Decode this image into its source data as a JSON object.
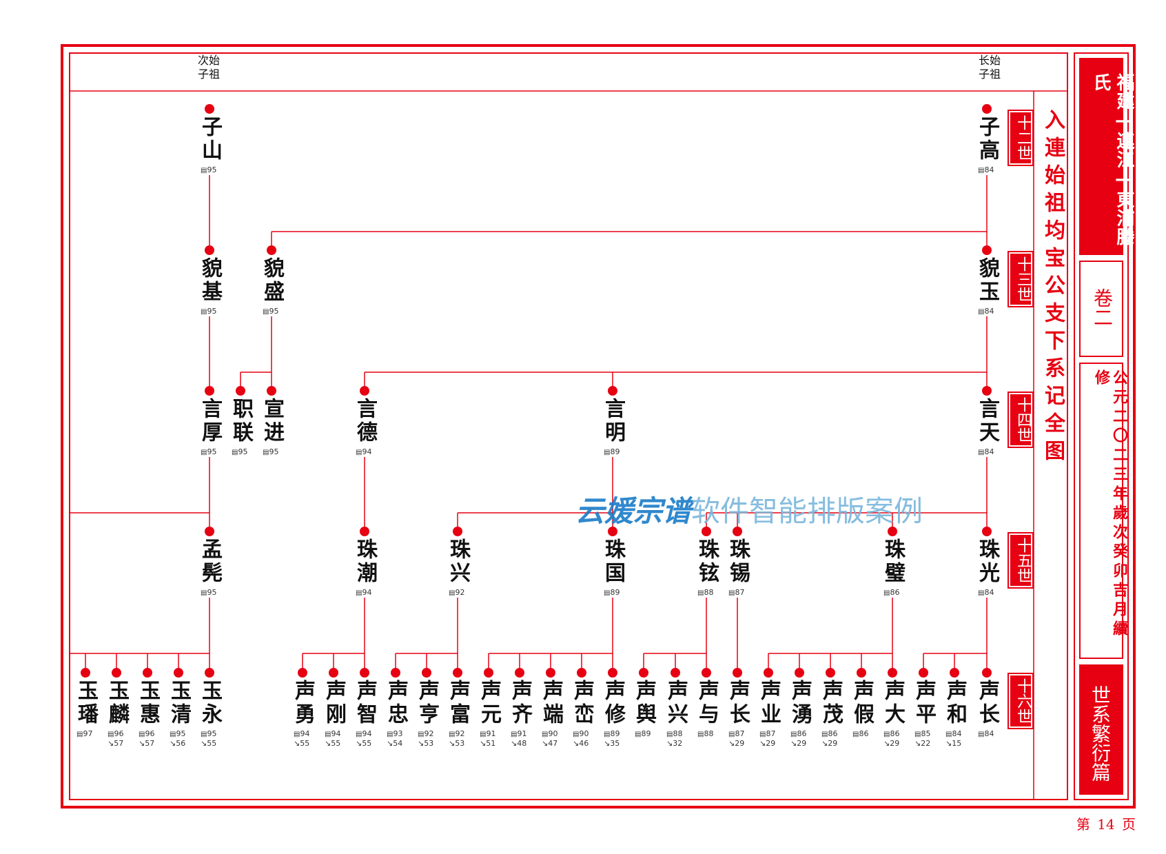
{
  "title_vertical": "入連始祖均宝公支下系记全图",
  "top_labels": {
    "left": [
      "次始",
      "子祖"
    ],
    "right": [
      "长始",
      "子祖"
    ]
  },
  "side_panel": {
    "header": "福建—連江—東浦滕氏",
    "volume": "卷二",
    "date": "公元二〇二三年歲次癸卯吉月續修",
    "section": "世系繁衍篇"
  },
  "generations": [
    "十二世",
    "十三世",
    "十四世",
    "十五世",
    "十六世"
  ],
  "watermark": {
    "script_part": "云媛宗谱",
    "plain_part": "软件智能排版案例"
  },
  "page_number": "第 14 页",
  "accent_color": "#e60012",
  "icons": {
    "page_ref": "page-ref-icon",
    "child_ref": "child-ref-icon"
  },
  "nodes": [
    {
      "id": "zishan",
      "name": "子山",
      "page": "95",
      "child": ""
    },
    {
      "id": "zigao",
      "name": "子高",
      "page": "84",
      "child": ""
    },
    {
      "id": "maoji",
      "name": "貌基",
      "page": "95",
      "child": ""
    },
    {
      "id": "maosheng",
      "name": "貌盛",
      "page": "95",
      "child": ""
    },
    {
      "id": "maoyu",
      "name": "貌玉",
      "page": "84",
      "child": ""
    },
    {
      "id": "yanhou",
      "name": "言厚",
      "page": "95",
      "child": ""
    },
    {
      "id": "zhilian",
      "name": "职联",
      "page": "95",
      "child": ""
    },
    {
      "id": "xuanjin",
      "name": "宣进",
      "page": "95",
      "child": ""
    },
    {
      "id": "yande",
      "name": "言德",
      "page": "94",
      "child": ""
    },
    {
      "id": "yanming",
      "name": "言明",
      "page": "89",
      "child": ""
    },
    {
      "id": "yantian",
      "name": "言天",
      "page": "84",
      "child": ""
    },
    {
      "id": "mengyao",
      "name": "孟髡",
      "page": "95",
      "child": ""
    },
    {
      "id": "zhuchao",
      "name": "珠潮",
      "page": "94",
      "child": ""
    },
    {
      "id": "zhuxing",
      "name": "珠兴",
      "page": "92",
      "child": ""
    },
    {
      "id": "zhuguo",
      "name": "珠国",
      "page": "89",
      "child": ""
    },
    {
      "id": "zhuxuan",
      "name": "珠铉",
      "page": "88",
      "child": ""
    },
    {
      "id": "zhuxi",
      "name": "珠锡",
      "page": "87",
      "child": ""
    },
    {
      "id": "zhubi",
      "name": "珠璧",
      "page": "86",
      "child": ""
    },
    {
      "id": "zhuguang",
      "name": "珠光",
      "page": "84",
      "child": ""
    },
    {
      "id": "yufan",
      "name": "玉璠",
      "page": "97",
      "child": ""
    },
    {
      "id": "yulin",
      "name": "玉麟",
      "page": "96",
      "child": "57"
    },
    {
      "id": "yuhui",
      "name": "玉惠",
      "page": "96",
      "child": "57"
    },
    {
      "id": "yuqing",
      "name": "玉清",
      "page": "95",
      "child": "56"
    },
    {
      "id": "yuyong",
      "name": "玉永",
      "page": "95",
      "child": "55"
    },
    {
      "id": "shengyong",
      "name": "声勇",
      "page": "94",
      "child": "55"
    },
    {
      "id": "shenggang",
      "name": "声刚",
      "page": "94",
      "child": "55"
    },
    {
      "id": "shengzhi",
      "name": "声智",
      "page": "94",
      "child": "55"
    },
    {
      "id": "shengzhong",
      "name": "声忠",
      "page": "93",
      "child": "54"
    },
    {
      "id": "shengheng",
      "name": "声亨",
      "page": "92",
      "child": "53"
    },
    {
      "id": "shengfu",
      "name": "声富",
      "page": "92",
      "child": "53"
    },
    {
      "id": "shengyuan",
      "name": "声元",
      "page": "91",
      "child": "51"
    },
    {
      "id": "shengqi",
      "name": "声齐",
      "page": "91",
      "child": "48"
    },
    {
      "id": "shengduan",
      "name": "声端",
      "page": "90",
      "child": "47"
    },
    {
      "id": "shengluan",
      "name": "声峦",
      "page": "90",
      "child": "46"
    },
    {
      "id": "shengxiu",
      "name": "声修",
      "page": "89",
      "child": "35"
    },
    {
      "id": "shengyu1",
      "name": "声舆",
      "page": "89",
      "child": ""
    },
    {
      "id": "shengxing",
      "name": "声兴",
      "page": "88",
      "child": "32"
    },
    {
      "id": "shengyu2",
      "name": "声与",
      "page": "88",
      "child": ""
    },
    {
      "id": "shengchang1",
      "name": "声长",
      "page": "87",
      "child": "29"
    },
    {
      "id": "shengye",
      "name": "声业",
      "page": "87",
      "child": "29"
    },
    {
      "id": "shengyong2",
      "name": "声湧",
      "page": "86",
      "child": "29"
    },
    {
      "id": "shengmao",
      "name": "声茂",
      "page": "86",
      "child": "29"
    },
    {
      "id": "shengjia",
      "name": "声假",
      "page": "86",
      "child": ""
    },
    {
      "id": "shengda",
      "name": "声大",
      "page": "86",
      "child": "29"
    },
    {
      "id": "shengping",
      "name": "声平",
      "page": "85",
      "child": "22"
    },
    {
      "id": "shenghe",
      "name": "声和",
      "page": "84",
      "child": "15"
    },
    {
      "id": "shengchang2",
      "name": "声长",
      "page": "84",
      "child": ""
    }
  ]
}
